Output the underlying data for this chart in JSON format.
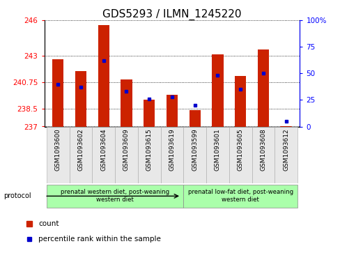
{
  "title": "GDS5293 / ILMN_1245220",
  "samples": [
    "GSM1093600",
    "GSM1093602",
    "GSM1093604",
    "GSM1093609",
    "GSM1093615",
    "GSM1093619",
    "GSM1093599",
    "GSM1093601",
    "GSM1093605",
    "GSM1093608",
    "GSM1093612"
  ],
  "bar_values": [
    242.7,
    241.7,
    245.6,
    241.0,
    239.3,
    239.7,
    238.4,
    243.1,
    241.3,
    243.5,
    237.05
  ],
  "bar_base": 237,
  "percentile_values": [
    40.0,
    37.0,
    62.0,
    33.0,
    26.0,
    28.0,
    20.0,
    48.0,
    35.0,
    50.0,
    5.0
  ],
  "ylim_left": [
    237,
    246
  ],
  "ylim_right": [
    0,
    100
  ],
  "yticks_left": [
    237,
    238.5,
    240.75,
    243,
    246
  ],
  "ytick_labels_left": [
    "237",
    "238.5",
    "240.75",
    "243",
    "246"
  ],
  "yticks_right": [
    0,
    25,
    50,
    75,
    100
  ],
  "ytick_labels_right": [
    "0",
    "25",
    "50",
    "75",
    "100%"
  ],
  "bar_color": "#cc2200",
  "marker_color": "#0000cc",
  "grid_color": "#000000",
  "bg_color": "#ffffff",
  "plot_bg": "#ffffff",
  "protocol_groups": [
    {
      "label": "prenatal western diet, post-weaning\nwestern diet",
      "indices": [
        0,
        1,
        2,
        3,
        4,
        5
      ],
      "color": "#aaffaa"
    },
    {
      "label": "prenatal low-fat diet, post-weaning\nwestern diet",
      "indices": [
        6,
        7,
        8,
        9,
        10
      ],
      "color": "#aaffaa"
    }
  ],
  "protocol_label": "protocol",
  "legend_count_label": "count",
  "legend_percentile_label": "percentile rank within the sample",
  "title_fontsize": 11,
  "tick_fontsize": 7.5,
  "sample_fontsize": 6.5,
  "legend_fontsize": 7.5,
  "bar_width": 0.5
}
